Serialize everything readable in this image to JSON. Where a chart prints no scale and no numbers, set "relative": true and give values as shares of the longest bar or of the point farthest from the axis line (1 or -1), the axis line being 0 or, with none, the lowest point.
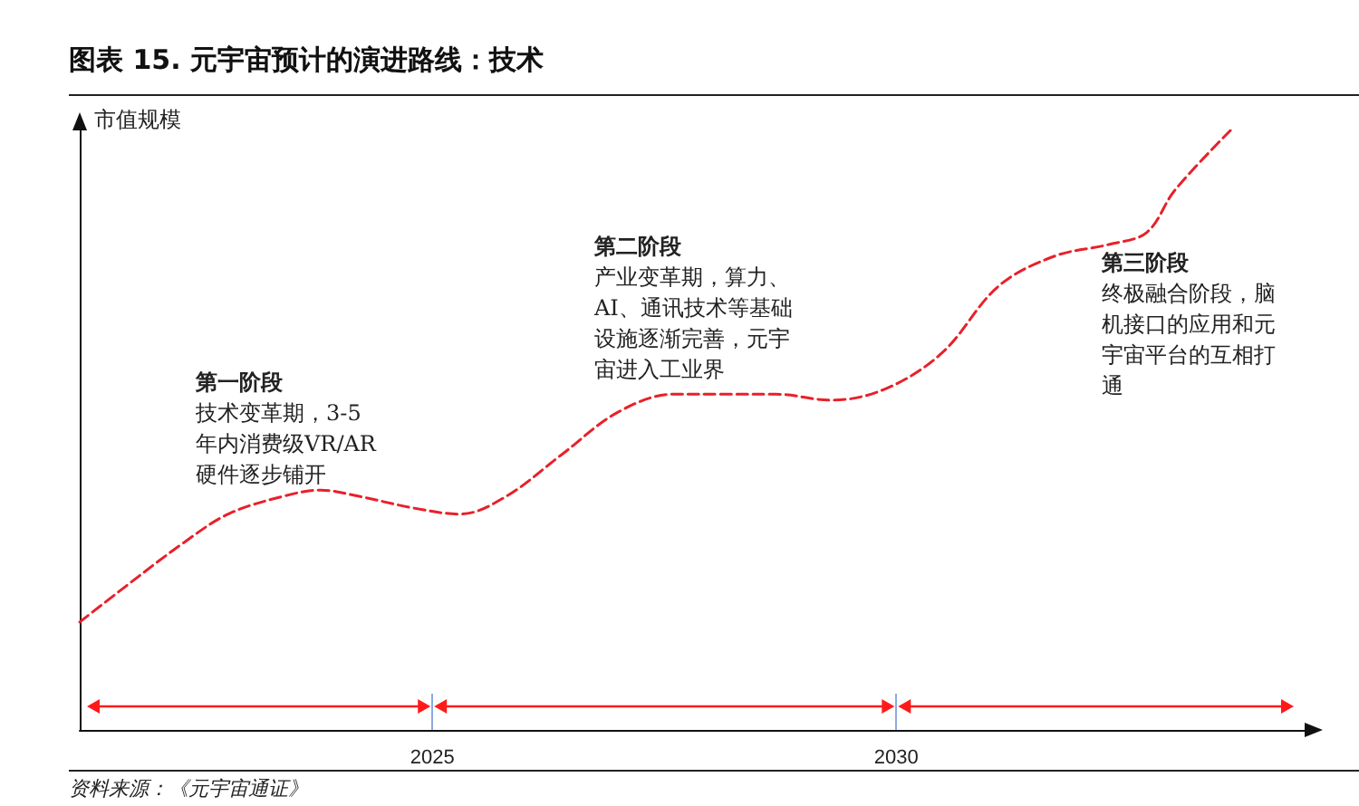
{
  "chart_data": {
    "type": "line",
    "title": "图表 15. 元宇宙预计的演进路线：技术",
    "ylabel": "市值规模",
    "relative": true,
    "marker": "none",
    "line_style": "dashed",
    "grid": false,
    "xlim": [
      2021.2,
      2034.4
    ],
    "xticks": [
      2025,
      2030
    ],
    "x": [
      2021.2,
      2021.7,
      2022.3,
      2022.8,
      2023.4,
      2023.8,
      2024.2,
      2024.8,
      2025.3,
      2025.8,
      2026.4,
      2027,
      2027.6,
      2028.1,
      2028.7,
      2029.3,
      2029.9,
      2030.5,
      2031.1,
      2031.7,
      2032.3,
      2032.7,
      2033,
      2033.6
    ],
    "series": [
      {
        "color": "#e8202a",
        "values": [
          0.18,
          0.24,
          0.31,
          0.36,
          0.39,
          0.4,
          0.39,
          0.37,
          0.36,
          0.39,
          0.46,
          0.53,
          0.56,
          0.56,
          0.56,
          0.55,
          0.57,
          0.63,
          0.74,
          0.79,
          0.81,
          0.83,
          0.9,
          1
        ]
      }
    ],
    "annotations": [
      "第一阶段",
      "技术变革期，3-5 年内消费级VR/AR 硬件逐步铺开",
      "第二阶段",
      "产业变革期，算力、AI、通讯技术等基础设施逐渐完善，元宇宙进入工业界",
      "第三阶段",
      "终极融合阶段，脑机接口的应用和元宇宙平台的互相打通",
      "资料来源：《元宇宙通证》"
    ]
  }
}
